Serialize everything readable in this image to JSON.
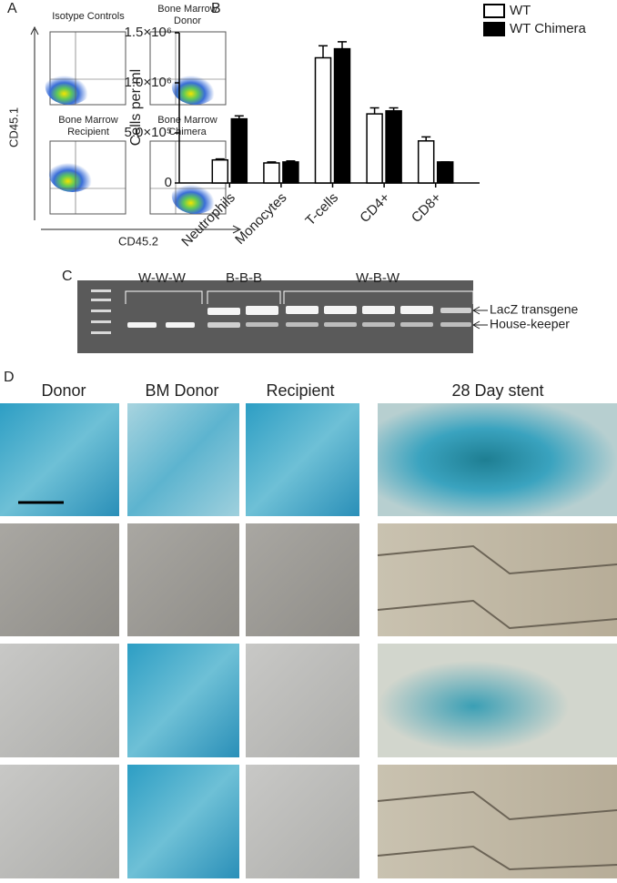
{
  "panel_labels": [
    "A",
    "B",
    "C",
    "D"
  ],
  "flow": {
    "titles": [
      "Isotype Controls",
      "Bone Marrow Donor",
      "Bone Marrow Recipient",
      "Bone Marrow Chimera"
    ],
    "y_label": "CD45.1",
    "x_label": "CD45.2"
  },
  "chart_data": {
    "type": "bar",
    "y_label": "Cells per ml",
    "categories": [
      "Neutrophils",
      "Monocytes",
      "T-cells",
      "CD4+",
      "CD8+"
    ],
    "series": [
      {
        "name": "WT",
        "color": "#ffffff",
        "values": [
          230000,
          200000,
          1250000,
          690000,
          420000
        ],
        "errors": [
          10000,
          10000,
          120000,
          60000,
          40000
        ]
      },
      {
        "name": "WT Chimera",
        "color": "#000000",
        "values": [
          640000,
          210000,
          1340000,
          720000,
          210000
        ],
        "errors": [
          30000,
          10000,
          70000,
          30000,
          0
        ]
      }
    ],
    "ylim": [
      0,
      1500000
    ],
    "yticks": [
      0,
      {
        "value": 500000,
        "label": "5.0×10⁵"
      },
      {
        "value": 1000000,
        "label": "1.0×10⁶"
      },
      {
        "value": 1500000,
        "label": "1.5×10⁶"
      }
    ],
    "legend": "top-right"
  },
  "gel": {
    "groups": [
      "W-W-W",
      "B-B-B",
      "W-B-W"
    ],
    "bands": [
      "LacZ transgene",
      "House-keeper"
    ]
  },
  "stain": {
    "columns": [
      "Donor",
      "BM Donor",
      "Recipient",
      "28 Day stent"
    ]
  }
}
